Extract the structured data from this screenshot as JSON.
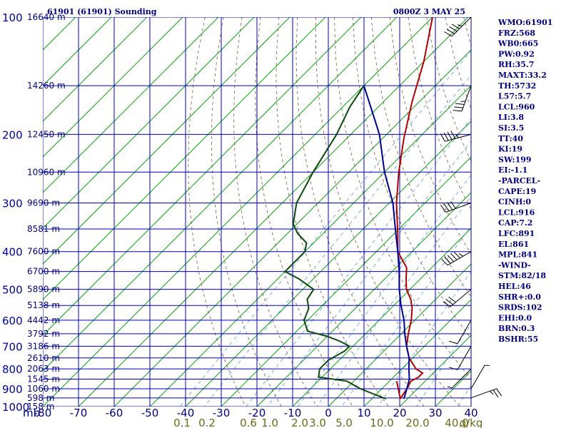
{
  "header": {
    "station": "61901 (61901) Sounding",
    "time": "0800Z  3 MAY 25"
  },
  "chart_data": {
    "type": "line",
    "title": "61901 (61901) Sounding",
    "subtitle": "0800Z  3 MAY 25",
    "x_axis": {
      "unit_label": "mb",
      "range": [
        -80,
        0
      ],
      "ticks": [
        "-80",
        "-70",
        "-60",
        "-50",
        "-40",
        "-30",
        "-20",
        "-10",
        "0",
        "10",
        "20",
        "30",
        "40"
      ]
    },
    "y_axis": {
      "scale": "log",
      "pressure_ticks": [
        "100",
        "200",
        "300",
        "400",
        "500",
        "600",
        "700",
        "800",
        "900",
        "1000"
      ]
    },
    "pressure_levels": [
      100,
      150,
      200,
      250,
      300,
      350,
      400,
      450,
      500,
      550,
      600,
      650,
      700,
      750,
      800,
      850,
      900,
      950,
      1000
    ],
    "height_labels": [
      {
        "p": 100,
        "label": "16640 m"
      },
      {
        "p": 150,
        "label": "14260 m"
      },
      {
        "p": 200,
        "label": "12450 m"
      },
      {
        "p": 250,
        "label": "10960 m"
      },
      {
        "p": 300,
        "label": "9690 m"
      },
      {
        "p": 350,
        "label": "8581 m"
      },
      {
        "p": 400,
        "label": "7600 m"
      },
      {
        "p": 450,
        "label": "6700 m"
      },
      {
        "p": 500,
        "label": "5890 m"
      },
      {
        "p": 550,
        "label": "5138 m"
      },
      {
        "p": 600,
        "label": "4442 m"
      },
      {
        "p": 650,
        "label": "3792 m"
      },
      {
        "p": 700,
        "label": "3186 m"
      },
      {
        "p": 750,
        "label": "2610 m"
      },
      {
        "p": 800,
        "label": "2063 m"
      },
      {
        "p": 850,
        "label": "1545 m"
      },
      {
        "p": 900,
        "label": "1060 m"
      },
      {
        "p": 950,
        "label": "598 m"
      },
      {
        "p": 1000,
        "label": "158 m"
      }
    ],
    "mixing_ratio_labels": [
      "0.1",
      "0.2",
      "0.6",
      "1.0",
      "2.0",
      "3.0",
      "5.0",
      "10.0",
      "20.0",
      "40.0",
      "g/kg"
    ],
    "series": [
      {
        "color": "#b00000",
        "points": [
          [
            100,
            -80
          ],
          [
            130,
            -70
          ],
          [
            165,
            -62
          ],
          [
            205,
            -54
          ],
          [
            250,
            -46
          ],
          [
            300,
            -38
          ],
          [
            360,
            -29
          ],
          [
            400,
            -24
          ],
          [
            440,
            -17
          ],
          [
            470,
            -14
          ],
          [
            500,
            -11
          ],
          [
            530,
            -7
          ],
          [
            560,
            -4
          ],
          [
            600,
            -1
          ],
          [
            650,
            2
          ],
          [
            700,
            5
          ],
          [
            750,
            9
          ],
          [
            800,
            14
          ],
          [
            820,
            17
          ],
          [
            840,
            17
          ],
          [
            860,
            16
          ],
          [
            900,
            17
          ],
          [
            955,
            18
          ]
        ]
      },
      {
        "color": "#b00000",
        "points": [
          [
            860,
            12
          ],
          [
            955,
            18
          ]
        ]
      },
      {
        "color": "#000090",
        "points": [
          [
            150,
            -80
          ],
          [
            200,
            -62
          ],
          [
            250,
            -50
          ],
          [
            300,
            -39
          ],
          [
            350,
            -31
          ],
          [
            400,
            -24
          ],
          [
            450,
            -18
          ],
          [
            500,
            -13
          ],
          [
            550,
            -8
          ],
          [
            600,
            -3
          ],
          [
            650,
            1
          ],
          [
            700,
            5
          ],
          [
            750,
            9
          ],
          [
            800,
            12
          ],
          [
            850,
            15
          ],
          [
            900,
            17
          ],
          [
            955,
            19
          ]
        ]
      },
      {
        "color": "#0a4a0a",
        "points": [
          [
            150,
            -80
          ],
          [
            170,
            -78
          ],
          [
            200,
            -74
          ],
          [
            250,
            -70
          ],
          [
            300,
            -66
          ],
          [
            340,
            -61
          ],
          [
            360,
            -57
          ],
          [
            380,
            -52
          ],
          [
            400,
            -50
          ],
          [
            450,
            -50
          ],
          [
            470,
            -44
          ],
          [
            500,
            -37
          ],
          [
            530,
            -36
          ],
          [
            560,
            -33
          ],
          [
            600,
            -31
          ],
          [
            640,
            -27
          ],
          [
            660,
            -20
          ],
          [
            680,
            -15
          ],
          [
            700,
            -11
          ],
          [
            720,
            -11
          ],
          [
            760,
            -13
          ],
          [
            800,
            -13
          ],
          [
            840,
            -11
          ],
          [
            860,
            -2
          ],
          [
            900,
            4
          ],
          [
            950,
            13
          ],
          [
            955,
            14
          ]
        ]
      }
    ],
    "wind_barbs": [
      {
        "p": 100,
        "dir": 225,
        "kt": 45
      },
      {
        "p": 150,
        "dir": 200,
        "kt": 35
      },
      {
        "p": 200,
        "dir": 255,
        "kt": 45
      },
      {
        "p": 300,
        "dir": 250,
        "kt": 40
      },
      {
        "p": 400,
        "dir": 240,
        "kt": 55
      },
      {
        "p": 500,
        "dir": 230,
        "kt": 30
      },
      {
        "p": 600,
        "dir": 210,
        "kt": 10
      },
      {
        "p": 700,
        "dir": 210,
        "kt": 10
      },
      {
        "p": 800,
        "dir": 225,
        "kt": 5
      },
      {
        "p": 900,
        "dir": 30,
        "kt": 5
      },
      {
        "p": 950,
        "dir": 70,
        "kt": 25
      }
    ],
    "grid": true
  },
  "indices": [
    "WMO:61901",
    "FRZ:568",
    "WB0:665",
    "PW:0.92",
    "RH:35.7",
    "MAXT:33.2",
    "TH:5732",
    "L57:5.7",
    "LCL:960",
    "LI:3.8",
    "SI:3.5",
    "TT:40",
    "KI:19",
    "SW:199",
    "EI:-1.1",
    "-PARCEL-",
    "CAPE:19",
    "CINH:0",
    "LCL:916",
    "CAP:7.2",
    "LFC:891",
    "EL:861",
    "MPL:841",
    "-WIND-",
    "STM:82/18",
    "HEL:46",
    "SHR+:0.0",
    "SRDS:102",
    "EHI:0.0",
    "BRN:0.3",
    "BSHR:55"
  ]
}
